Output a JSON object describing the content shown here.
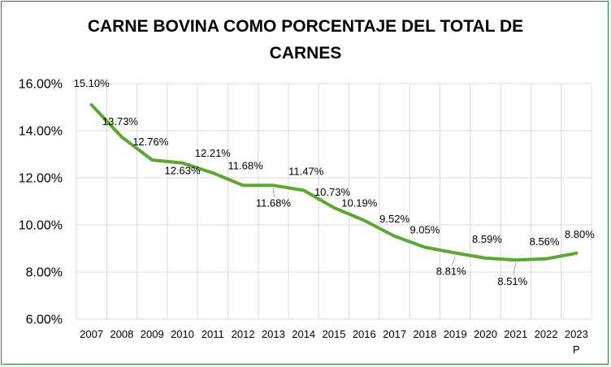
{
  "chart_data": {
    "type": "line",
    "title_lines": [
      "CARNE BOVINA COMO PORCENTAJE DEL TOTAL DE",
      "CARNES"
    ],
    "categories": [
      "2007",
      "2008",
      "2009",
      "2010",
      "2011",
      "2012",
      "2013",
      "2014",
      "2015",
      "2016",
      "2017",
      "2018",
      "2019",
      "2020",
      "2021",
      "2022",
      "2023"
    ],
    "category_suffix": {
      "2023": "P"
    },
    "series": [
      {
        "values": [
          15.1,
          13.73,
          12.76,
          12.63,
          12.21,
          11.68,
          11.68,
          11.47,
          10.73,
          10.19,
          9.52,
          9.05,
          8.81,
          8.59,
          8.51,
          8.56,
          8.8
        ],
        "labels": [
          "15.10%",
          "13.73%",
          "12.76%",
          "12.63%",
          "12.21%",
          "11.68%",
          "11.68%",
          "11.47%",
          "10.73%",
          "10.19%",
          "9.52%",
          "9.05%",
          "8.81%",
          "8.59%",
          "8.51%",
          "8.56%",
          "8.80%"
        ],
        "color": "#5aa832"
      }
    ],
    "y_ticks": [
      "16.00%",
      "14.00%",
      "12.00%",
      "10.00%",
      "8.00%",
      "6.00%"
    ],
    "ylim": [
      6,
      16
    ],
    "grid": true,
    "grid_color": "#d9d9d9"
  }
}
